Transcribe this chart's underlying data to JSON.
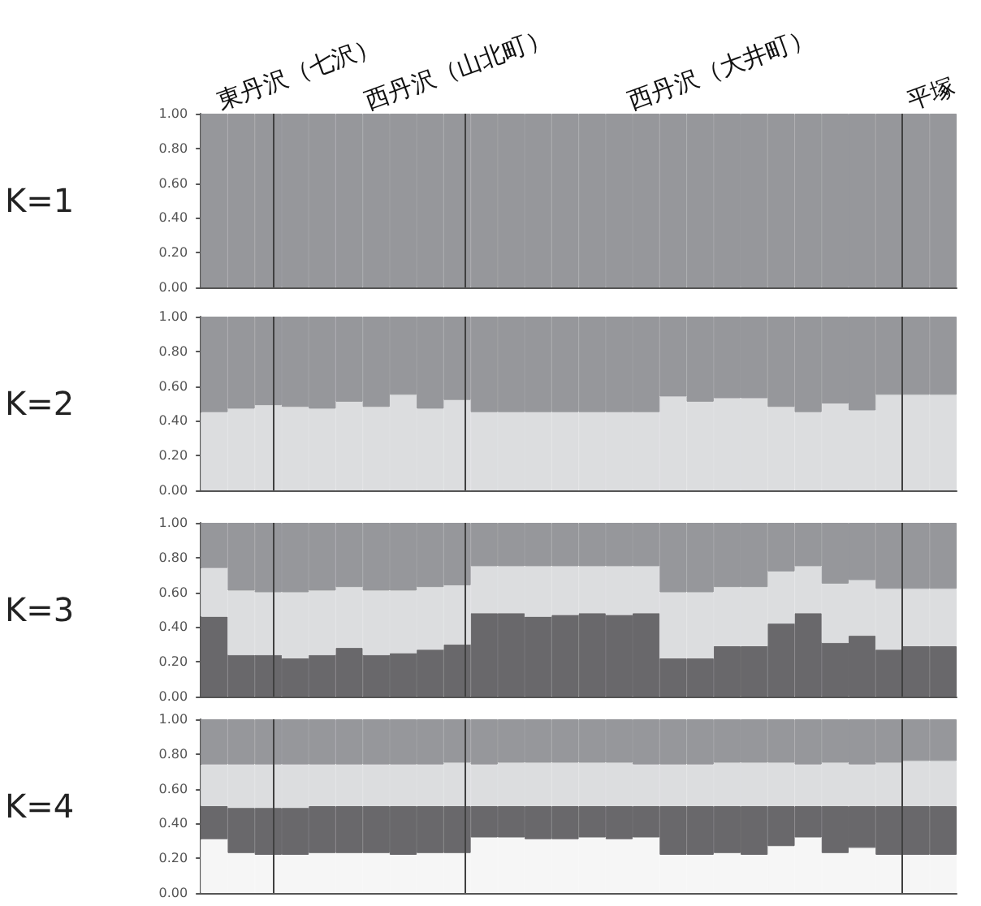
{
  "chart_data": [
    {
      "type": "bar",
      "stacked": true,
      "ylabel": "K=1",
      "tick_labels": "y",
      "categories": [
        null,
        null,
        null,
        null,
        null,
        null,
        null,
        null,
        null,
        null,
        null,
        null,
        null,
        null,
        null,
        null,
        null,
        null,
        null,
        null,
        null,
        null,
        null,
        null,
        null,
        null,
        null,
        null
      ],
      "ylim": [
        0,
        1
      ],
      "yticks": [
        {
          "value": 0,
          "label": "0.00"
        },
        {
          "value": 0.2,
          "label": "0.20"
        },
        {
          "value": 0.4,
          "label": "0.40"
        },
        {
          "value": 0.6,
          "label": "0.60"
        },
        {
          "value": 0.8,
          "label": "0.80"
        },
        {
          "value": 1,
          "label": "1.00"
        }
      ],
      "annotations": [
        "東丹沢（七沢）",
        "西丹沢（山北町）",
        "西丹沢（大井町）",
        "平塚"
      ],
      "series": [
        {
          "color": "#96979b",
          "values": [
            1,
            1,
            1,
            1,
            1,
            1,
            1,
            1,
            1,
            1,
            1,
            1,
            1,
            1,
            1,
            1,
            1,
            1,
            1,
            1,
            1,
            1,
            1,
            1,
            1,
            1,
            1,
            1
          ]
        }
      ]
    },
    {
      "type": "bar",
      "stacked": true,
      "ylabel": "K=2",
      "tick_labels": "y",
      "categories": [
        null,
        null,
        null,
        null,
        null,
        null,
        null,
        null,
        null,
        null,
        null,
        null,
        null,
        null,
        null,
        null,
        null,
        null,
        null,
        null,
        null,
        null,
        null,
        null,
        null,
        null,
        null,
        null
      ],
      "ylim": [
        0,
        1
      ],
      "yticks": [
        {
          "value": 0,
          "label": "0.00"
        },
        {
          "value": 0.2,
          "label": "0.20"
        },
        {
          "value": 0.4,
          "label": "0.40"
        },
        {
          "value": 0.6,
          "label": "0.60"
        },
        {
          "value": 0.8,
          "label": "0.80"
        },
        {
          "value": 1,
          "label": "1.00"
        }
      ],
      "series": [
        {
          "color": "#dcdddf",
          "values": [
            0.45,
            0.47,
            0.49,
            0.48,
            0.47,
            0.51,
            0.48,
            0.55,
            0.47,
            0.52,
            0.45,
            0.45,
            0.45,
            0.45,
            0.45,
            0.45,
            0.45,
            0.54,
            0.51,
            0.53,
            0.53,
            0.48,
            0.45,
            0.5,
            0.46,
            0.55,
            0.55,
            0.55
          ]
        },
        {
          "color": "#96979b",
          "values": [
            0.55,
            0.53,
            0.51,
            0.52,
            0.53,
            0.49,
            0.52,
            0.45,
            0.53,
            0.48,
            0.55,
            0.55,
            0.55,
            0.55,
            0.55,
            0.55,
            0.55,
            0.46,
            0.49,
            0.47,
            0.47,
            0.52,
            0.55,
            0.5,
            0.54,
            0.45,
            0.45,
            0.45
          ]
        }
      ]
    },
    {
      "type": "bar",
      "stacked": true,
      "ylabel": "K=3",
      "tick_labels": "y",
      "categories": [
        null,
        null,
        null,
        null,
        null,
        null,
        null,
        null,
        null,
        null,
        null,
        null,
        null,
        null,
        null,
        null,
        null,
        null,
        null,
        null,
        null,
        null,
        null,
        null,
        null,
        null,
        null,
        null
      ],
      "ylim": [
        0,
        1
      ],
      "yticks": [
        {
          "value": 0,
          "label": "0.00"
        },
        {
          "value": 0.2,
          "label": "0.20"
        },
        {
          "value": 0.4,
          "label": "0.40"
        },
        {
          "value": 0.6,
          "label": "0.60"
        },
        {
          "value": 0.8,
          "label": "0.80"
        },
        {
          "value": 1,
          "label": "1.00"
        }
      ],
      "series": [
        {
          "color": "#69686b",
          "values": [
            0.46,
            0.24,
            0.24,
            0.22,
            0.24,
            0.28,
            0.24,
            0.25,
            0.27,
            0.3,
            0.48,
            0.48,
            0.46,
            0.47,
            0.48,
            0.47,
            0.48,
            0.22,
            0.22,
            0.29,
            0.29,
            0.42,
            0.48,
            0.31,
            0.35,
            0.27,
            0.29,
            0.29
          ]
        },
        {
          "color": "#dcdddf",
          "values": [
            0.28,
            0.37,
            0.36,
            0.38,
            0.37,
            0.35,
            0.37,
            0.36,
            0.36,
            0.34,
            0.27,
            0.27,
            0.29,
            0.28,
            0.27,
            0.28,
            0.27,
            0.38,
            0.38,
            0.34,
            0.34,
            0.3,
            0.27,
            0.34,
            0.32,
            0.35,
            0.33,
            0.33
          ]
        },
        {
          "color": "#96979b",
          "values": [
            0.26,
            0.39,
            0.4,
            0.4,
            0.39,
            0.37,
            0.39,
            0.39,
            0.37,
            0.36,
            0.25,
            0.25,
            0.25,
            0.25,
            0.25,
            0.25,
            0.25,
            0.4,
            0.4,
            0.37,
            0.37,
            0.28,
            0.25,
            0.35,
            0.33,
            0.38,
            0.38,
            0.38
          ]
        }
      ]
    },
    {
      "type": "bar",
      "stacked": true,
      "ylabel": "K=4",
      "tick_labels": "y",
      "categories": [
        null,
        null,
        null,
        null,
        null,
        null,
        null,
        null,
        null,
        null,
        null,
        null,
        null,
        null,
        null,
        null,
        null,
        null,
        null,
        null,
        null,
        null,
        null,
        null,
        null,
        null,
        null,
        null
      ],
      "ylim": [
        0,
        1
      ],
      "yticks": [
        {
          "value": 0,
          "label": "0.00"
        },
        {
          "value": 0.2,
          "label": "0.20"
        },
        {
          "value": 0.4,
          "label": "0.40"
        },
        {
          "value": 0.6,
          "label": "0.60"
        },
        {
          "value": 0.8,
          "label": "0.80"
        },
        {
          "value": 1,
          "label": "1.00"
        }
      ],
      "series": [
        {
          "color": "#f6f6f6",
          "values": [
            0.31,
            0.23,
            0.22,
            0.22,
            0.23,
            0.23,
            0.23,
            0.22,
            0.23,
            0.23,
            0.32,
            0.32,
            0.31,
            0.31,
            0.32,
            0.31,
            0.32,
            0.22,
            0.22,
            0.23,
            0.22,
            0.27,
            0.32,
            0.23,
            0.26,
            0.22,
            0.22,
            0.22
          ]
        },
        {
          "color": "#69686b",
          "values": [
            0.19,
            0.26,
            0.27,
            0.27,
            0.27,
            0.27,
            0.27,
            0.28,
            0.27,
            0.27,
            0.18,
            0.18,
            0.19,
            0.19,
            0.18,
            0.19,
            0.18,
            0.28,
            0.28,
            0.27,
            0.28,
            0.23,
            0.18,
            0.27,
            0.24,
            0.28,
            0.28,
            0.28
          ]
        },
        {
          "color": "#dcdddf",
          "values": [
            0.24,
            0.25,
            0.25,
            0.25,
            0.24,
            0.24,
            0.24,
            0.24,
            0.24,
            0.25,
            0.24,
            0.25,
            0.25,
            0.25,
            0.25,
            0.25,
            0.24,
            0.24,
            0.24,
            0.25,
            0.25,
            0.25,
            0.24,
            0.25,
            0.24,
            0.25,
            0.26,
            0.26
          ]
        },
        {
          "color": "#96979b",
          "values": [
            0.26,
            0.26,
            0.26,
            0.26,
            0.26,
            0.26,
            0.26,
            0.26,
            0.26,
            0.25,
            0.26,
            0.25,
            0.25,
            0.25,
            0.25,
            0.25,
            0.26,
            0.26,
            0.26,
            0.25,
            0.25,
            0.25,
            0.26,
            0.25,
            0.26,
            0.25,
            0.24,
            0.24
          ]
        }
      ]
    }
  ]
}
